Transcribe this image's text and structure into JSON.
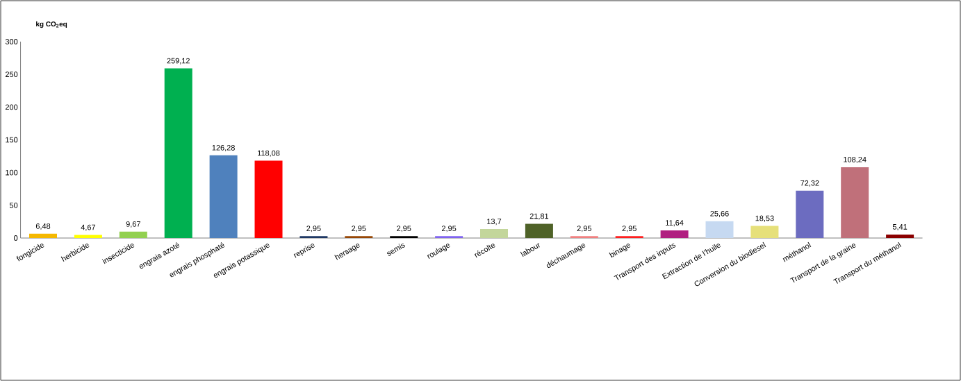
{
  "chart_data": {
    "type": "bar",
    "ylabel": "kg CO$_{2}$eq",
    "categories": [
      "fongicide",
      "herbicide",
      "insecticide",
      "engrais azoté",
      "engrais phosphaté",
      "engrais potassique",
      "reprise",
      "hersage",
      "semis",
      "roulage",
      "récolte",
      "labour",
      "déchaumage",
      "binage",
      "Transport des inputs",
      "Extraction de l’huile",
      "Conversion du biodiesel",
      "méthanol",
      "Transport de la graine",
      "Transport du méthanol"
    ],
    "values": [
      6.48,
      4.67,
      9.67,
      259.12,
      126.28,
      118.08,
      2.95,
      2.95,
      2.95,
      2.95,
      13.7,
      21.81,
      2.95,
      2.95,
      11.64,
      25.66,
      18.53,
      72.32,
      108.24,
      5.41
    ],
    "value_labels": [
      "6,48",
      "4,67",
      "9,67",
      "259,12",
      "126,28",
      "118,08",
      "2,95",
      "2,95",
      "2,95",
      "2,95",
      "13,7",
      "21,81",
      "2,95",
      "2,95",
      "11,64",
      "25,66",
      "18,53",
      "72,32",
      "108,24",
      "5,41"
    ],
    "colors": [
      "#f5b800",
      "#ffff00",
      "#92d050",
      "#00b050",
      "#4f81bd",
      "#ff0000",
      "#1f3864",
      "#974706",
      "#000000",
      "#8064f0",
      "#c3d69b",
      "#4f6228",
      "#f08080",
      "#ff2020",
      "#b02080",
      "#c6d9f1",
      "#e6e07a",
      "#6c6cc0",
      "#c0707a",
      "#8b0000"
    ],
    "ylim": [
      0,
      300
    ],
    "yticks": [
      0,
      50,
      100,
      150,
      200,
      250,
      300
    ],
    "grid": false
  }
}
